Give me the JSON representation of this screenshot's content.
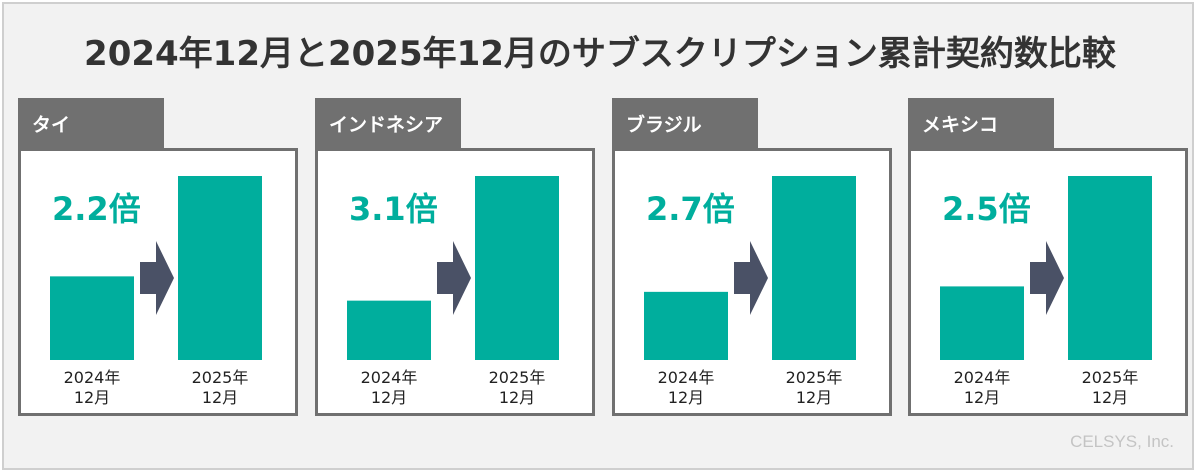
{
  "title": "2024年12月と2025年12月のサブスクリプション累計契約数比較",
  "credit": "CELSYS, Inc.",
  "colors": {
    "bar": "#00ae9d",
    "arrow": "#4a5166",
    "tab": "#707070",
    "ratio_text": "#00ae9d"
  },
  "arrow_icon": "right-arrow-icon",
  "chart_data": [
    {
      "type": "bar",
      "panel_label": "タイ",
      "ratio_label": "2.2倍",
      "categories": [
        [
          "2024年",
          "12月"
        ],
        [
          "2025年",
          "12月"
        ]
      ],
      "values": [
        1.0,
        2.2
      ],
      "ylim": [
        0,
        2.2
      ]
    },
    {
      "type": "bar",
      "panel_label": "インドネシア",
      "ratio_label": "3.1倍",
      "categories": [
        [
          "2024年",
          "12月"
        ],
        [
          "2025年",
          "12月"
        ]
      ],
      "values": [
        1.0,
        3.1
      ],
      "ylim": [
        0,
        3.1
      ]
    },
    {
      "type": "bar",
      "panel_label": "ブラジル",
      "ratio_label": "2.7倍",
      "categories": [
        [
          "2024年",
          "12月"
        ],
        [
          "2025年",
          "12月"
        ]
      ],
      "values": [
        1.0,
        2.7
      ],
      "ylim": [
        0,
        2.7
      ]
    },
    {
      "type": "bar",
      "panel_label": "メキシコ",
      "ratio_label": "2.5倍",
      "categories": [
        [
          "2024年",
          "12月"
        ],
        [
          "2025年",
          "12月"
        ]
      ],
      "values": [
        1.0,
        2.5
      ],
      "ylim": [
        0,
        2.5
      ]
    }
  ]
}
